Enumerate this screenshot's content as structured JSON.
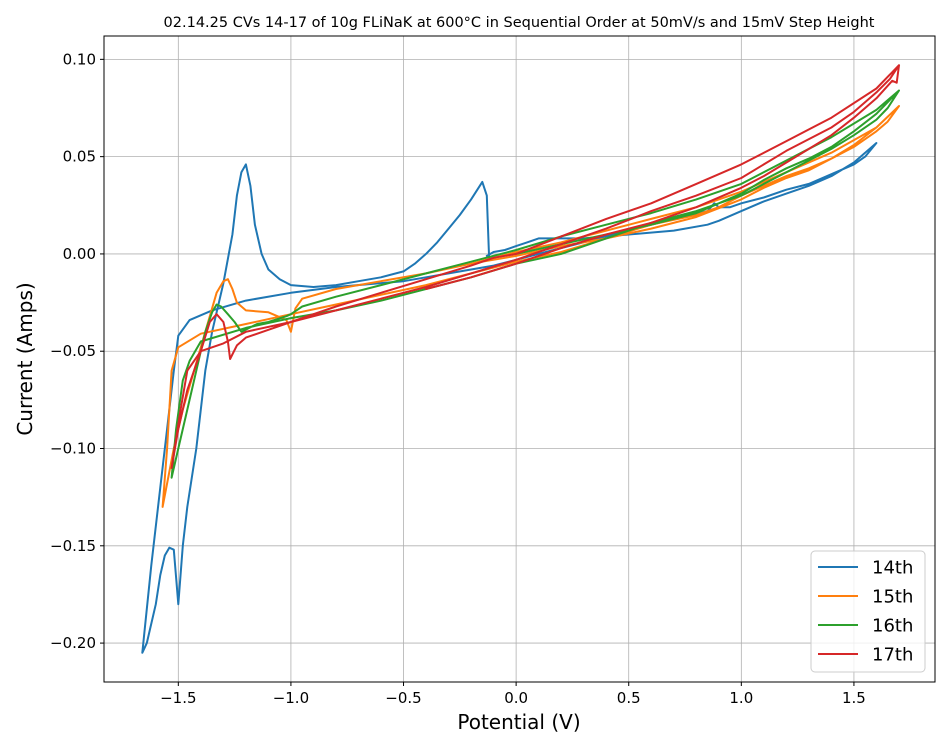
{
  "chart_data": {
    "type": "line",
    "title": "02.14.25 CVs 14-17 of 10g FLiNaK at 600°C in Sequential Order at 50mV/s and 15mV Step Height",
    "xlabel": "Potential (V)",
    "ylabel": "Current (Amps)",
    "xlim": [
      -1.83,
      1.86
    ],
    "ylim": [
      -0.22,
      0.112
    ],
    "xticks": [
      -1.5,
      -1.0,
      -0.5,
      0.0,
      0.5,
      1.0,
      1.5
    ],
    "xtick_labels": [
      "−1.5",
      "−1.0",
      "−0.5",
      "0.0",
      "0.5",
      "1.0",
      "1.5"
    ],
    "yticks": [
      -0.2,
      -0.15,
      -0.1,
      -0.05,
      0.0,
      0.05,
      0.1
    ],
    "ytick_labels": [
      "−0.20",
      "−0.15",
      "−0.10",
      "−0.05",
      "0.00",
      "0.05",
      "0.10"
    ],
    "grid": true,
    "legend_position": "lower-right",
    "series": [
      {
        "name": "14th",
        "color": "#1f77b4",
        "points": [
          [
            -0.13,
            -0.001
          ],
          [
            -0.1,
            0.001
          ],
          [
            -0.05,
            0.002
          ],
          [
            0.0,
            0.004
          ],
          [
            0.05,
            0.006
          ],
          [
            0.1,
            0.008
          ],
          [
            0.2,
            0.008
          ],
          [
            0.3,
            0.008
          ],
          [
            0.5,
            0.01
          ],
          [
            0.7,
            0.012
          ],
          [
            0.85,
            0.015
          ],
          [
            0.9,
            0.017
          ],
          [
            1.0,
            0.022
          ],
          [
            1.1,
            0.027
          ],
          [
            1.2,
            0.031
          ],
          [
            1.3,
            0.035
          ],
          [
            1.4,
            0.04
          ],
          [
            1.5,
            0.047
          ],
          [
            1.6,
            0.057
          ],
          [
            1.55,
            0.05
          ],
          [
            1.5,
            0.046
          ],
          [
            1.4,
            0.041
          ],
          [
            1.3,
            0.036
          ],
          [
            1.2,
            0.033
          ],
          [
            1.1,
            0.029
          ],
          [
            1.0,
            0.026
          ],
          [
            0.95,
            0.024
          ],
          [
            0.9,
            0.024
          ],
          [
            0.88,
            0.026
          ],
          [
            0.85,
            0.022
          ],
          [
            0.7,
            0.018
          ],
          [
            0.5,
            0.012
          ],
          [
            0.3,
            0.006
          ],
          [
            0.1,
            0.0
          ],
          [
            0.0,
            -0.003
          ],
          [
            -0.1,
            -0.006
          ],
          [
            -0.2,
            -0.008
          ],
          [
            -0.3,
            -0.01
          ],
          [
            -0.4,
            -0.012
          ],
          [
            -0.5,
            -0.014
          ],
          [
            -0.6,
            -0.015
          ],
          [
            -0.8,
            -0.017
          ],
          [
            -1.0,
            -0.02
          ],
          [
            -1.2,
            -0.024
          ],
          [
            -1.35,
            -0.029
          ],
          [
            -1.45,
            -0.034
          ],
          [
            -1.5,
            -0.042
          ],
          [
            -1.52,
            -0.06
          ],
          [
            -1.55,
            -0.09
          ],
          [
            -1.58,
            -0.12
          ],
          [
            -1.62,
            -0.16
          ],
          [
            -1.66,
            -0.205
          ],
          [
            -1.64,
            -0.2
          ],
          [
            -1.62,
            -0.19
          ],
          [
            -1.6,
            -0.18
          ],
          [
            -1.58,
            -0.165
          ],
          [
            -1.56,
            -0.155
          ],
          [
            -1.54,
            -0.151
          ],
          [
            -1.52,
            -0.152
          ],
          [
            -1.5,
            -0.18
          ],
          [
            -1.48,
            -0.15
          ],
          [
            -1.46,
            -0.13
          ],
          [
            -1.42,
            -0.1
          ],
          [
            -1.38,
            -0.06
          ],
          [
            -1.35,
            -0.04
          ],
          [
            -1.3,
            -0.015
          ],
          [
            -1.26,
            0.01
          ],
          [
            -1.24,
            0.03
          ],
          [
            -1.22,
            0.042
          ],
          [
            -1.2,
            0.046
          ],
          [
            -1.18,
            0.035
          ],
          [
            -1.16,
            0.015
          ],
          [
            -1.13,
            0.0
          ],
          [
            -1.1,
            -0.008
          ],
          [
            -1.05,
            -0.013
          ],
          [
            -1.0,
            -0.016
          ],
          [
            -0.9,
            -0.017
          ],
          [
            -0.8,
            -0.016
          ],
          [
            -0.7,
            -0.014
          ],
          [
            -0.6,
            -0.012
          ],
          [
            -0.5,
            -0.009
          ],
          [
            -0.45,
            -0.005
          ],
          [
            -0.4,
            0.0
          ],
          [
            -0.35,
            0.006
          ],
          [
            -0.3,
            0.013
          ],
          [
            -0.25,
            0.02
          ],
          [
            -0.2,
            0.028
          ],
          [
            -0.15,
            0.037
          ],
          [
            -0.13,
            0.03
          ],
          [
            -0.12,
            -0.002
          ]
        ]
      },
      {
        "name": "15th",
        "color": "#ff7f0e",
        "points": [
          [
            -0.15,
            -0.004
          ],
          [
            0.0,
            -0.001
          ],
          [
            0.2,
            0.004
          ],
          [
            0.4,
            0.008
          ],
          [
            0.6,
            0.013
          ],
          [
            0.8,
            0.019
          ],
          [
            1.0,
            0.028
          ],
          [
            1.1,
            0.034
          ],
          [
            1.2,
            0.039
          ],
          [
            1.3,
            0.043
          ],
          [
            1.4,
            0.049
          ],
          [
            1.5,
            0.056
          ],
          [
            1.6,
            0.065
          ],
          [
            1.7,
            0.076
          ],
          [
            1.65,
            0.068
          ],
          [
            1.6,
            0.063
          ],
          [
            1.5,
            0.055
          ],
          [
            1.4,
            0.049
          ],
          [
            1.3,
            0.044
          ],
          [
            1.2,
            0.04
          ],
          [
            1.1,
            0.035
          ],
          [
            1.0,
            0.03
          ],
          [
            0.9,
            0.024
          ],
          [
            0.8,
            0.02
          ],
          [
            0.6,
            0.015
          ],
          [
            0.4,
            0.008
          ],
          [
            0.2,
            0.001
          ],
          [
            0.0,
            -0.004
          ],
          [
            -0.2,
            -0.01
          ],
          [
            -0.4,
            -0.016
          ],
          [
            -0.6,
            -0.021
          ],
          [
            -0.8,
            -0.026
          ],
          [
            -1.0,
            -0.031
          ],
          [
            -1.2,
            -0.036
          ],
          [
            -1.4,
            -0.041
          ],
          [
            -1.5,
            -0.048
          ],
          [
            -1.53,
            -0.06
          ],
          [
            -1.55,
            -0.1
          ],
          [
            -1.57,
            -0.13
          ],
          [
            -1.52,
            -0.1
          ],
          [
            -1.48,
            -0.08
          ],
          [
            -1.43,
            -0.06
          ],
          [
            -1.38,
            -0.04
          ],
          [
            -1.33,
            -0.02
          ],
          [
            -1.3,
            -0.014
          ],
          [
            -1.28,
            -0.013
          ],
          [
            -1.26,
            -0.018
          ],
          [
            -1.24,
            -0.025
          ],
          [
            -1.2,
            -0.029
          ],
          [
            -1.1,
            -0.03
          ],
          [
            -1.02,
            -0.034
          ],
          [
            -1.0,
            -0.04
          ],
          [
            -0.98,
            -0.028
          ],
          [
            -0.95,
            -0.023
          ],
          [
            -0.8,
            -0.018
          ],
          [
            -0.6,
            -0.014
          ],
          [
            -0.4,
            -0.01
          ],
          [
            -0.2,
            -0.005
          ],
          [
            0.0,
            0.001
          ],
          [
            0.2,
            0.006
          ],
          [
            0.4,
            0.012
          ],
          [
            0.6,
            0.018
          ],
          [
            0.8,
            0.024
          ],
          [
            1.0,
            0.032
          ],
          [
            1.2,
            0.042
          ],
          [
            1.4,
            0.052
          ],
          [
            1.6,
            0.065
          ],
          [
            1.7,
            0.076
          ]
        ]
      },
      {
        "name": "16th",
        "color": "#2ca02c",
        "points": [
          [
            0.0,
            0.0
          ],
          [
            0.2,
            0.005
          ],
          [
            0.4,
            0.01
          ],
          [
            0.6,
            0.015
          ],
          [
            0.8,
            0.021
          ],
          [
            1.0,
            0.031
          ],
          [
            1.1,
            0.038
          ],
          [
            1.2,
            0.044
          ],
          [
            1.3,
            0.049
          ],
          [
            1.4,
            0.055
          ],
          [
            1.5,
            0.063
          ],
          [
            1.6,
            0.072
          ],
          [
            1.7,
            0.084
          ],
          [
            1.65,
            0.075
          ],
          [
            1.6,
            0.069
          ],
          [
            1.5,
            0.061
          ],
          [
            1.4,
            0.054
          ],
          [
            1.3,
            0.048
          ],
          [
            1.2,
            0.042
          ],
          [
            1.1,
            0.036
          ],
          [
            1.0,
            0.03
          ],
          [
            0.8,
            0.022
          ],
          [
            0.6,
            0.016
          ],
          [
            0.4,
            0.008
          ],
          [
            0.2,
            0.0
          ],
          [
            0.0,
            -0.005
          ],
          [
            -0.2,
            -0.012
          ],
          [
            -0.4,
            -0.018
          ],
          [
            -0.6,
            -0.024
          ],
          [
            -0.8,
            -0.029
          ],
          [
            -1.0,
            -0.033
          ],
          [
            -1.2,
            -0.038
          ],
          [
            -1.4,
            -0.045
          ],
          [
            -1.45,
            -0.055
          ],
          [
            -1.48,
            -0.065
          ],
          [
            -1.51,
            -0.09
          ],
          [
            -1.53,
            -0.115
          ],
          [
            -1.5,
            -0.1
          ],
          [
            -1.46,
            -0.08
          ],
          [
            -1.42,
            -0.06
          ],
          [
            -1.38,
            -0.04
          ],
          [
            -1.35,
            -0.03
          ],
          [
            -1.33,
            -0.026
          ],
          [
            -1.31,
            -0.027
          ],
          [
            -1.28,
            -0.031
          ],
          [
            -1.25,
            -0.035
          ],
          [
            -1.22,
            -0.04
          ],
          [
            -1.15,
            -0.036
          ],
          [
            -1.1,
            -0.035
          ],
          [
            -1.02,
            -0.032
          ],
          [
            -1.0,
            -0.031
          ],
          [
            -0.95,
            -0.027
          ],
          [
            -0.8,
            -0.022
          ],
          [
            -0.6,
            -0.016
          ],
          [
            -0.4,
            -0.01
          ],
          [
            -0.2,
            -0.004
          ],
          [
            0.0,
            0.002
          ],
          [
            0.2,
            0.009
          ],
          [
            0.4,
            0.015
          ],
          [
            0.6,
            0.021
          ],
          [
            0.8,
            0.028
          ],
          [
            1.0,
            0.036
          ],
          [
            1.2,
            0.048
          ],
          [
            1.4,
            0.06
          ],
          [
            1.6,
            0.074
          ],
          [
            1.7,
            0.084
          ]
        ]
      },
      {
        "name": "17th",
        "color": "#d62728",
        "points": [
          [
            -0.4,
            -0.018
          ],
          [
            -0.2,
            -0.012
          ],
          [
            0.0,
            -0.005
          ],
          [
            0.2,
            0.003
          ],
          [
            0.4,
            0.01
          ],
          [
            0.6,
            0.016
          ],
          [
            0.8,
            0.024
          ],
          [
            1.0,
            0.034
          ],
          [
            1.1,
            0.04
          ],
          [
            1.2,
            0.047
          ],
          [
            1.3,
            0.054
          ],
          [
            1.4,
            0.061
          ],
          [
            1.5,
            0.07
          ],
          [
            1.6,
            0.08
          ],
          [
            1.67,
            0.089
          ],
          [
            1.69,
            0.088
          ],
          [
            1.7,
            0.097
          ],
          [
            1.66,
            0.09
          ],
          [
            1.6,
            0.083
          ],
          [
            1.5,
            0.073
          ],
          [
            1.4,
            0.065
          ],
          [
            1.3,
            0.059
          ],
          [
            1.2,
            0.053
          ],
          [
            1.1,
            0.046
          ],
          [
            1.0,
            0.039
          ],
          [
            0.8,
            0.03
          ],
          [
            0.6,
            0.022
          ],
          [
            0.4,
            0.013
          ],
          [
            0.2,
            0.005
          ],
          [
            0.0,
            -0.003
          ],
          [
            -0.2,
            -0.01
          ],
          [
            -0.4,
            -0.017
          ],
          [
            -0.6,
            -0.023
          ],
          [
            -0.8,
            -0.029
          ],
          [
            -1.0,
            -0.035
          ],
          [
            -1.2,
            -0.04
          ],
          [
            -1.3,
            -0.046
          ],
          [
            -1.4,
            -0.05
          ],
          [
            -1.46,
            -0.06
          ],
          [
            -1.49,
            -0.08
          ],
          [
            -1.53,
            -0.11
          ],
          [
            -1.5,
            -0.09
          ],
          [
            -1.46,
            -0.07
          ],
          [
            -1.4,
            -0.05
          ],
          [
            -1.36,
            -0.035
          ],
          [
            -1.33,
            -0.031
          ],
          [
            -1.3,
            -0.035
          ],
          [
            -1.28,
            -0.045
          ],
          [
            -1.27,
            -0.054
          ],
          [
            -1.24,
            -0.047
          ],
          [
            -1.2,
            -0.043
          ],
          [
            -1.1,
            -0.039
          ],
          [
            -1.0,
            -0.035
          ],
          [
            -0.8,
            -0.027
          ],
          [
            -0.6,
            -0.02
          ],
          [
            -0.4,
            -0.013
          ],
          [
            -0.2,
            -0.006
          ],
          [
            -0.1,
            -0.002
          ],
          [
            0.0,
            0.0
          ],
          [
            0.2,
            0.009
          ],
          [
            0.4,
            0.018
          ],
          [
            0.6,
            0.026
          ],
          [
            0.8,
            0.036
          ],
          [
            1.0,
            0.046
          ],
          [
            1.2,
            0.058
          ],
          [
            1.4,
            0.07
          ],
          [
            1.6,
            0.085
          ],
          [
            1.7,
            0.097
          ]
        ]
      }
    ]
  }
}
